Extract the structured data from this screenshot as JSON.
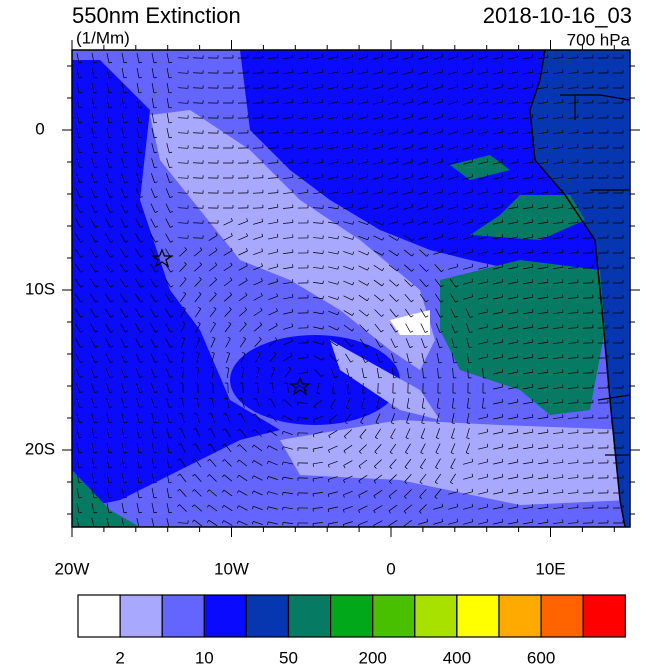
{
  "header": {
    "title": "550nm Extinction",
    "units": "(1/Mm)",
    "time": "2018-10-16_03",
    "level": "700 hPa"
  },
  "map": {
    "lon_ticks": [
      "20W",
      "10W",
      "0",
      "10E"
    ],
    "lat_ticks": [
      "0",
      "10S",
      "20S"
    ]
  },
  "colorbar": {
    "colors": [
      "#ffffff",
      "#a8a8ff",
      "#6464ff",
      "#0a0aff",
      "#0636b0",
      "#067a62",
      "#00a81a",
      "#48c000",
      "#a8e000",
      "#ffff00",
      "#ffaa00",
      "#ff6400",
      "#ff0000"
    ],
    "labels": [
      "2",
      "10",
      "50",
      "200",
      "400",
      "600"
    ]
  }
}
